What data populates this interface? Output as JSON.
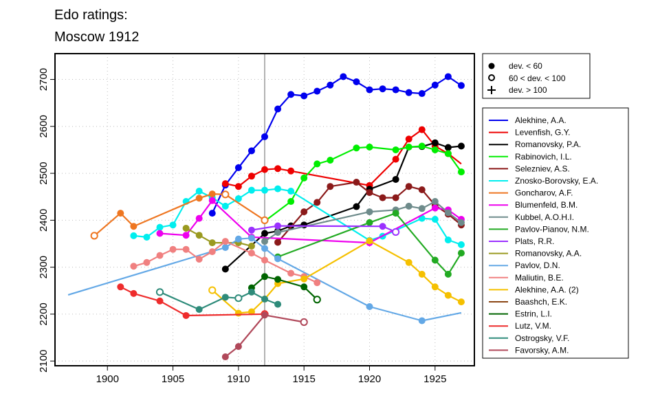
{
  "chart_data": {
    "type": "line",
    "title_lines": [
      "Edo ratings:",
      "Moscow 1912"
    ],
    "xlabel": "",
    "ylabel": "",
    "xlim": [
      1896,
      1928
    ],
    "ylim": [
      2090,
      2755
    ],
    "x_ticks": [
      1900,
      1905,
      1910,
      1915,
      1920,
      1925
    ],
    "y_ticks": [
      2100,
      2200,
      2300,
      2400,
      2500,
      2600,
      2700
    ],
    "grid": "dotted",
    "reference_line_x": 1912,
    "legend_position": "right",
    "marker_legend": [
      {
        "symbol": "filled-circle",
        "label": "dev. < 60"
      },
      {
        "symbol": "open-circle",
        "label": "60 < dev. < 100"
      },
      {
        "symbol": "plus",
        "label": "dev. > 100"
      }
    ],
    "series": [
      {
        "name": "Alekhine, A.A.",
        "color": "#0000ee",
        "points": [
          [
            1908,
            2415,
            "f"
          ],
          [
            1909,
            2475,
            "f"
          ],
          [
            1910,
            2512,
            "f"
          ],
          [
            1911,
            2548,
            "f"
          ],
          [
            1912,
            2578,
            "f"
          ],
          [
            1913,
            2637,
            "f"
          ],
          [
            1914,
            2668,
            "f"
          ],
          [
            1915,
            2665,
            "f"
          ],
          [
            1916,
            2675,
            "f"
          ],
          [
            1917,
            2688,
            "f"
          ],
          [
            1918,
            2706,
            "f"
          ],
          [
            1919,
            2695,
            "f"
          ],
          [
            1920,
            2678,
            "f"
          ],
          [
            1921,
            2680,
            "f"
          ],
          [
            1922,
            2678,
            "f"
          ],
          [
            1923,
            2672,
            "f"
          ],
          [
            1924,
            2670,
            "f"
          ],
          [
            1925,
            2688,
            "f"
          ],
          [
            1926,
            2706,
            "f"
          ],
          [
            1927,
            2687,
            "f"
          ]
        ]
      },
      {
        "name": "Levenfish, G.Y.",
        "color": "#ee0000",
        "points": [
          [
            1909,
            2478,
            "f"
          ],
          [
            1910,
            2472,
            "f"
          ],
          [
            1911,
            2494,
            "f"
          ],
          [
            1912,
            2508,
            "f"
          ],
          [
            1913,
            2510,
            "f"
          ],
          [
            1914,
            2505,
            "f"
          ],
          [
            1920,
            2474,
            "f"
          ],
          [
            1922,
            2530,
            "f"
          ],
          [
            1923,
            2573,
            "f"
          ],
          [
            1924,
            2593,
            "f"
          ],
          [
            1925,
            2558,
            "f"
          ],
          [
            1926,
            2542,
            "f"
          ],
          [
            1927,
            2520,
            "n"
          ]
        ]
      },
      {
        "name": "Romanovsky, P.A.",
        "color": "#000000",
        "points": [
          [
            1909,
            2296,
            "f"
          ],
          [
            1912,
            2372,
            "f"
          ],
          [
            1913,
            2377,
            "f"
          ],
          [
            1914,
            2388,
            "f"
          ],
          [
            1915,
            2390,
            "f"
          ],
          [
            1919,
            2429,
            "f"
          ],
          [
            1920,
            2466,
            "f"
          ],
          [
            1922,
            2487,
            "f"
          ],
          [
            1923,
            2556,
            "n"
          ],
          [
            1924,
            2557,
            "f"
          ],
          [
            1925,
            2565,
            "f"
          ],
          [
            1926,
            2555,
            "f"
          ],
          [
            1927,
            2558,
            "f"
          ]
        ]
      },
      {
        "name": "Rabinovich, I.L.",
        "color": "#00ee00",
        "points": [
          [
            1912,
            2398,
            "n"
          ],
          [
            1914,
            2440,
            "f"
          ],
          [
            1915,
            2490,
            "f"
          ],
          [
            1916,
            2520,
            "f"
          ],
          [
            1917,
            2528,
            "f"
          ],
          [
            1919,
            2554,
            "f"
          ],
          [
            1920,
            2556,
            "f"
          ],
          [
            1922,
            2550,
            "f"
          ],
          [
            1923,
            2556,
            "f"
          ],
          [
            1924,
            2558,
            "f"
          ],
          [
            1925,
            2550,
            "f"
          ],
          [
            1926,
            2542,
            "f"
          ],
          [
            1927,
            2503,
            "f"
          ]
        ]
      },
      {
        "name": "Selezniev, A.S.",
        "color": "#8b1a1a",
        "points": [
          [
            1913,
            2353,
            "f"
          ],
          [
            1915,
            2418,
            "f"
          ],
          [
            1916,
            2438,
            "f"
          ],
          [
            1917,
            2472,
            "f"
          ],
          [
            1919,
            2481,
            "f"
          ],
          [
            1920,
            2459,
            "f"
          ],
          [
            1921,
            2448,
            "f"
          ],
          [
            1922,
            2448,
            "f"
          ],
          [
            1923,
            2472,
            "f"
          ],
          [
            1924,
            2465,
            "f"
          ],
          [
            1925,
            2432,
            "f"
          ],
          [
            1926,
            2413,
            "f"
          ],
          [
            1927,
            2390,
            "f"
          ]
        ]
      },
      {
        "name": "Znosko-Borovsky, E.A.",
        "color": "#00eeee",
        "points": [
          [
            1902,
            2367,
            "f"
          ],
          [
            1903,
            2364,
            "f"
          ],
          [
            1904,
            2385,
            "f"
          ],
          [
            1905,
            2390,
            "f"
          ],
          [
            1906,
            2440,
            "f"
          ],
          [
            1907,
            2462,
            "f"
          ],
          [
            1908,
            2448,
            "f"
          ],
          [
            1909,
            2430,
            "f"
          ],
          [
            1910,
            2446,
            "f"
          ],
          [
            1911,
            2464,
            "f"
          ],
          [
            1912,
            2464,
            "f"
          ],
          [
            1913,
            2467,
            "f"
          ],
          [
            1914,
            2462,
            "f"
          ],
          [
            1920,
            2357,
            "f"
          ],
          [
            1921,
            2366,
            "f"
          ],
          [
            1924,
            2404,
            "f"
          ],
          [
            1925,
            2402,
            "f"
          ],
          [
            1926,
            2358,
            "f"
          ],
          [
            1927,
            2348,
            "f"
          ]
        ]
      },
      {
        "name": "Goncharov, A.F.",
        "color": "#ee7621",
        "points": [
          [
            1899,
            2367,
            "o"
          ],
          [
            1901,
            2415,
            "f"
          ],
          [
            1902,
            2387,
            "f"
          ],
          [
            1907,
            2447,
            "f"
          ],
          [
            1908,
            2456,
            "f"
          ],
          [
            1909,
            2455,
            "o"
          ],
          [
            1912,
            2400,
            "o"
          ]
        ]
      },
      {
        "name": "Blumenfeld, B.M.",
        "color": "#ee00ee",
        "points": [
          [
            1904,
            2372,
            "f"
          ],
          [
            1906,
            2368,
            "f"
          ],
          [
            1907,
            2404,
            "f"
          ],
          [
            1908,
            2442,
            "f"
          ],
          [
            1911,
            2364,
            "f"
          ],
          [
            1920,
            2352,
            "f"
          ],
          [
            1925,
            2426,
            "f"
          ],
          [
            1926,
            2422,
            "f"
          ],
          [
            1927,
            2402,
            "f"
          ]
        ]
      },
      {
        "name": "Kubbel, A.O.H.I.",
        "color": "#6e8b8b",
        "points": [
          [
            1912,
            2355,
            "f"
          ],
          [
            1913,
            2374,
            "f"
          ],
          [
            1920,
            2418,
            "f"
          ],
          [
            1922,
            2422,
            "f"
          ],
          [
            1923,
            2430,
            "f"
          ],
          [
            1924,
            2425,
            "f"
          ],
          [
            1925,
            2440,
            "f"
          ],
          [
            1926,
            2416,
            "f"
          ],
          [
            1927,
            2395,
            "f"
          ]
        ]
      },
      {
        "name": "Pavlov-Pianov, N.M.",
        "color": "#22aa22",
        "points": [
          [
            1913,
            2322,
            "f"
          ],
          [
            1920,
            2395,
            "f"
          ],
          [
            1922,
            2415,
            "f"
          ],
          [
            1925,
            2315,
            "f"
          ],
          [
            1926,
            2285,
            "f"
          ],
          [
            1927,
            2330,
            "f"
          ]
        ]
      },
      {
        "name": "Plats, R.R.",
        "color": "#9b30ff",
        "points": [
          [
            1911,
            2379,
            "f"
          ],
          [
            1913,
            2388,
            "f"
          ],
          [
            1921,
            2387,
            "f"
          ],
          [
            1922,
            2375,
            "o"
          ]
        ]
      },
      {
        "name": "Romanovsky, A.A.",
        "color": "#9a9a20",
        "points": [
          [
            1906,
            2383,
            "f"
          ],
          [
            1907,
            2368,
            "f"
          ],
          [
            1908,
            2352,
            "f"
          ],
          [
            1910,
            2352,
            "f"
          ],
          [
            1911,
            2345,
            "f"
          ]
        ]
      },
      {
        "name": "Pavlov, D.N.",
        "color": "#63a8e6",
        "points": [
          [
            1897,
            2241,
            "n"
          ],
          [
            1909,
            2342,
            "f"
          ],
          [
            1910,
            2360,
            "f"
          ],
          [
            1911,
            2362,
            "f"
          ],
          [
            1912,
            2340,
            "f"
          ],
          [
            1913,
            2318,
            "f"
          ],
          [
            1920,
            2216,
            "f"
          ],
          [
            1924,
            2186,
            "f"
          ],
          [
            1927,
            2203,
            "n"
          ]
        ]
      },
      {
        "name": "Maliutin, B.E.",
        "color": "#f08080",
        "points": [
          [
            1902,
            2302,
            "f"
          ],
          [
            1903,
            2310,
            "f"
          ],
          [
            1904,
            2325,
            "f"
          ],
          [
            1905,
            2338,
            "f"
          ],
          [
            1906,
            2338,
            "f"
          ],
          [
            1907,
            2317,
            "f"
          ],
          [
            1908,
            2333,
            "f"
          ],
          [
            1909,
            2355,
            "f"
          ],
          [
            1911,
            2330,
            "f"
          ],
          [
            1912,
            2315,
            "f"
          ],
          [
            1914,
            2287,
            "f"
          ],
          [
            1915,
            2280,
            "f"
          ],
          [
            1916,
            2267,
            "f"
          ]
        ]
      },
      {
        "name": "Alekhine, A.A. (2)",
        "color": "#f5c000",
        "points": [
          [
            1908,
            2251,
            "o"
          ],
          [
            1910,
            2202,
            "f"
          ],
          [
            1911,
            2205,
            "f"
          ],
          [
            1912,
            2232,
            "f"
          ],
          [
            1913,
            2265,
            "f"
          ],
          [
            1915,
            2275,
            "f"
          ],
          [
            1920,
            2356,
            "f"
          ],
          [
            1923,
            2310,
            "f"
          ],
          [
            1924,
            2285,
            "f"
          ],
          [
            1925,
            2258,
            "f"
          ],
          [
            1926,
            2240,
            "f"
          ],
          [
            1927,
            2226,
            "f"
          ]
        ]
      },
      {
        "name": "Baashch, E.K.",
        "color": "#8b4513",
        "points": []
      },
      {
        "name": "Estrin, L.I.",
        "color": "#006400",
        "points": [
          [
            1911,
            2256,
            "f"
          ],
          [
            1912,
            2280,
            "f"
          ],
          [
            1913,
            2274,
            "f"
          ],
          [
            1915,
            2258,
            "f"
          ],
          [
            1916,
            2231,
            "o"
          ]
        ]
      },
      {
        "name": "Lutz, V.M.",
        "color": "#ee2c2c",
        "points": [
          [
            1901,
            2258,
            "f"
          ],
          [
            1902,
            2244,
            "f"
          ],
          [
            1904,
            2228,
            "f"
          ],
          [
            1906,
            2197,
            "f"
          ],
          [
            1912,
            2200,
            "o"
          ]
        ]
      },
      {
        "name": "Ostrogsky, V.F.",
        "color": "#2e8b7a",
        "points": [
          [
            1904,
            2247,
            "o"
          ],
          [
            1907,
            2210,
            "f"
          ],
          [
            1909,
            2236,
            "f"
          ],
          [
            1910,
            2234,
            "o"
          ],
          [
            1911,
            2247,
            "f"
          ],
          [
            1912,
            2232,
            "f"
          ],
          [
            1913,
            2221,
            "f"
          ]
        ]
      },
      {
        "name": "Favorsky, A.M.",
        "color": "#b0485a",
        "points": [
          [
            1909,
            2109,
            "f"
          ],
          [
            1910,
            2131,
            "f"
          ],
          [
            1912,
            2198,
            "f"
          ],
          [
            1915,
            2183,
            "o"
          ]
        ]
      }
    ]
  }
}
